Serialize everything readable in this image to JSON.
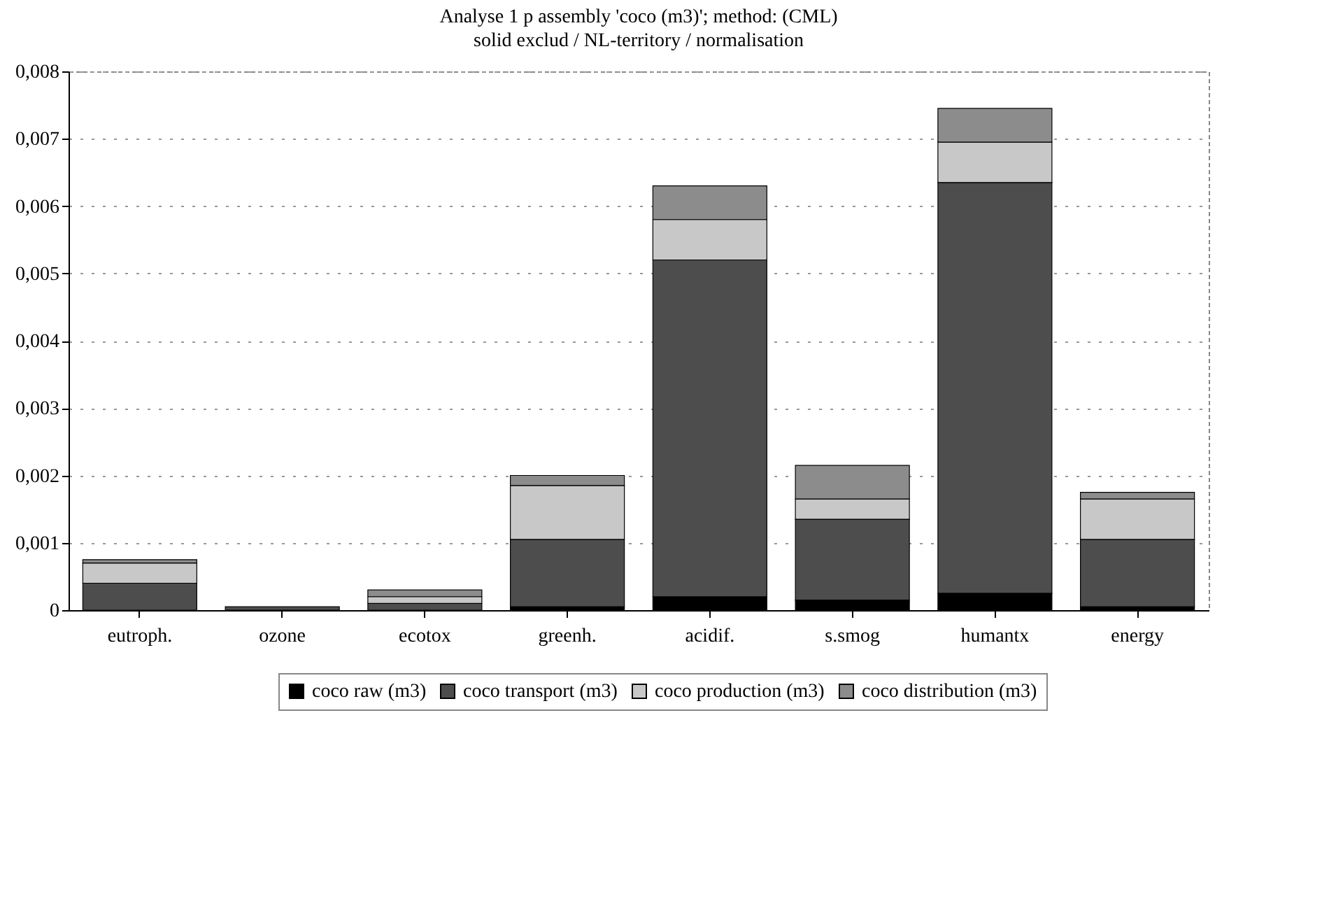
{
  "chart_data": {
    "type": "bar",
    "stacked": true,
    "title": "Analyse 1 p assembly 'coco (m3)'; method: (CML)",
    "subtitle": "solid exclud / NL-territory / normalisation",
    "categories": [
      "eutroph.",
      "ozone",
      "ecotox",
      "greenh.",
      "acidif.",
      "s.smog",
      "humantx",
      "energy"
    ],
    "series": [
      {
        "name": "coco raw (m3)",
        "color": "#000000",
        "values": [
          null,
          null,
          null,
          5e-05,
          0.0002,
          0.00015,
          0.00025,
          5e-05
        ]
      },
      {
        "name": "coco transport (m3)",
        "color": "#4d4d4d",
        "values": [
          0.0004,
          5e-05,
          0.0001,
          0.001,
          0.005,
          0.0012,
          0.0061,
          0.001
        ]
      },
      {
        "name": "coco production (m3)",
        "color": "#c8c8c8",
        "values": [
          0.0003,
          null,
          0.0001,
          0.0008,
          0.0006,
          0.0003,
          0.0006,
          0.0006
        ]
      },
      {
        "name": "coco distribution (m3)",
        "color": "#8c8c8c",
        "values": [
          5e-05,
          null,
          0.0001,
          0.00015,
          0.0005,
          0.0005,
          0.0005,
          0.0001
        ]
      }
    ],
    "ylim": [
      0,
      0.008
    ],
    "yticks": [
      0,
      {
        "value": 0.001,
        "label": "0,001"
      },
      {
        "value": 0.002,
        "label": "0,002"
      },
      {
        "value": 0.003,
        "label": "0,003"
      },
      {
        "value": 0.004,
        "label": "0,004"
      },
      {
        "value": 0.005,
        "label": "0,005"
      },
      {
        "value": 0.006,
        "label": "0,006"
      },
      {
        "value": 0.007,
        "label": "0,007"
      },
      {
        "value": 0.008,
        "label": "0,008"
      }
    ],
    "grid": "y",
    "legend": "bottom"
  }
}
